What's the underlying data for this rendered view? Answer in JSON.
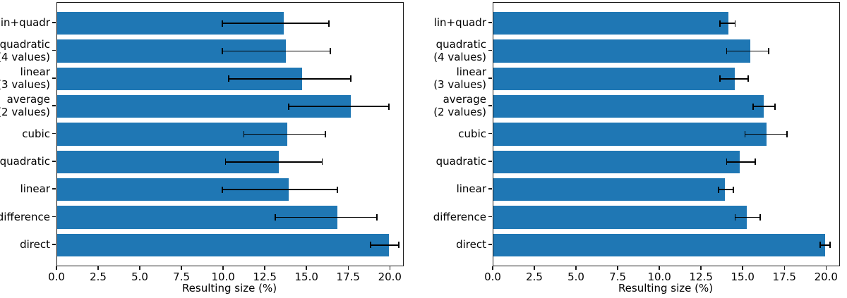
{
  "figure": {
    "xlabel": "Resulting size (%)",
    "bar_color": "#1f77b4",
    "error_color": "#000000",
    "axis_color": "#1a1a1a",
    "x_tick_labels": [
      "0.0",
      "2.5",
      "5.0",
      "7.5",
      "10.0",
      "12.5",
      "15.0",
      "17.5",
      "20.0"
    ],
    "x_tick_values": [
      0,
      2.5,
      5,
      7.5,
      10,
      12.5,
      15,
      17.5,
      20
    ]
  },
  "chart_data": [
    {
      "type": "bar",
      "orientation": "horizontal",
      "panel": "left",
      "title": "",
      "xlabel": "Resulting size (%)",
      "ylabel": "",
      "xlim": [
        0,
        20.75
      ],
      "grid": false,
      "legend": "none",
      "categories": [
        "lin+quadr",
        "quadratic (4 values)",
        "linear (3 values)",
        "average (2 values)",
        "cubic",
        "quadratic",
        "linear",
        "difference",
        "direct"
      ],
      "category_lines": [
        [
          "lin+quadr"
        ],
        [
          "quadratic",
          "(4 values)"
        ],
        [
          "linear",
          "(3 values)"
        ],
        [
          "average",
          "(2 values)"
        ],
        [
          "cubic"
        ],
        [
          "quadratic"
        ],
        [
          "linear"
        ],
        [
          "difference"
        ],
        [
          "direct"
        ]
      ],
      "values": [
        13.6,
        13.7,
        14.7,
        17.6,
        13.8,
        13.3,
        13.9,
        16.8,
        19.9
      ],
      "error_low": [
        9.9,
        9.9,
        10.3,
        13.9,
        11.2,
        10.1,
        9.9,
        13.1,
        18.8
      ],
      "error_high": [
        16.3,
        16.4,
        17.6,
        19.9,
        16.1,
        15.9,
        16.8,
        19.2,
        20.5
      ]
    },
    {
      "type": "bar",
      "orientation": "horizontal",
      "panel": "right",
      "title": "",
      "xlabel": "Resulting size (%)",
      "ylabel": "",
      "xlim": [
        0,
        20.75
      ],
      "grid": false,
      "legend": "none",
      "categories": [
        "lin+quadr",
        "quadratic (4 values)",
        "linear (3 values)",
        "average (2 values)",
        "cubic",
        "quadratic",
        "linear",
        "difference",
        "direct"
      ],
      "category_lines": [
        [
          "lin+quadr"
        ],
        [
          "quadratic",
          "(4 values)"
        ],
        [
          "linear",
          "(3 values)"
        ],
        [
          "average",
          "(2 values)"
        ],
        [
          "cubic"
        ],
        [
          "quadratic"
        ],
        [
          "linear"
        ],
        [
          "difference"
        ],
        [
          "direct"
        ]
      ],
      "values": [
        14.1,
        15.4,
        14.5,
        16.2,
        16.4,
        14.8,
        13.9,
        15.2,
        19.9
      ],
      "error_low": [
        13.6,
        14.0,
        13.6,
        15.6,
        15.1,
        14.0,
        13.5,
        14.5,
        19.6
      ],
      "error_high": [
        14.5,
        16.5,
        15.3,
        16.9,
        17.6,
        15.7,
        14.4,
        16.0,
        20.2
      ]
    }
  ]
}
